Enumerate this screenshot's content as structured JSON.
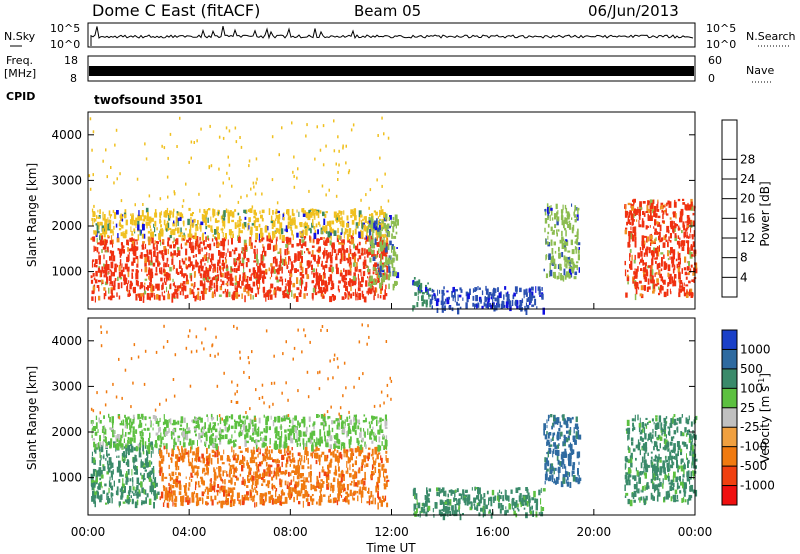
{
  "header": {
    "station": "Dome C East (fitACF)",
    "beam": "Beam 05",
    "date": "06/Jun/2013"
  },
  "noise_panel": {
    "left_label": "N.Sky",
    "right_label": "N.Search",
    "left_ticks": [
      "10^5",
      "10^0"
    ],
    "right_ticks": [
      "10^5",
      "10^0"
    ]
  },
  "freq_panel": {
    "left_label_1": "Freq.",
    "left_label_2": "[MHz]",
    "right_label": "Nave",
    "left_ticks": [
      "18",
      "8"
    ],
    "right_ticks": [
      "60",
      "0"
    ]
  },
  "cpid": {
    "label": "CPID",
    "value": "twofsound 3501"
  },
  "axes": {
    "ylabel": "Slant Range [km]",
    "xlabel": "Time UT",
    "y_ticks": [
      "1000",
      "2000",
      "3000",
      "4000"
    ],
    "x_ticks": [
      "00:00",
      "04:00",
      "08:00",
      "12:00",
      "16:00",
      "20:00",
      "00:00"
    ]
  },
  "power_scale": {
    "label": "Power [dB]",
    "ticks": [
      "4",
      "8",
      "12",
      "16",
      "20",
      "24",
      "28"
    ],
    "colors": [
      "#1010e0",
      "#2a50b0",
      "#3a8a60",
      "#8cbc50",
      "#f0c020",
      "#f09020",
      "#f06010",
      "#f03010",
      "#f01010"
    ]
  },
  "velocity_scale": {
    "label": "Velocity [m s",
    "label_sup": "-1",
    "label_end": "]",
    "ticks": [
      "1000",
      "500",
      "100",
      "25",
      "-25",
      "-100",
      "-500",
      "-1000"
    ],
    "colors": [
      "#1a40c8",
      "#2e6aa0",
      "#3a8a6a",
      "#5cc040",
      "#c0c0c0",
      "#f0a040",
      "#f07a10",
      "#f04010",
      "#f01010"
    ]
  },
  "chart_data": [
    {
      "type": "heatmap",
      "panel": "power",
      "x_range_hours": [
        0,
        24
      ],
      "y_range_km": [
        180,
        4500
      ],
      "colorbar_ticks": [
        4,
        8,
        12,
        16,
        20,
        24,
        28
      ],
      "regions": [
        {
          "t0": 0.1,
          "t1": 11.8,
          "r0": 450,
          "r1": 1800,
          "level": 28
        },
        {
          "t0": 0.1,
          "t1": 11.8,
          "r0": 1800,
          "r1": 2400,
          "level": 16
        },
        {
          "t0": 11.0,
          "t1": 12.2,
          "r0": 700,
          "r1": 2300,
          "level": 12
        },
        {
          "t0": 12.8,
          "t1": 13.5,
          "r0": 250,
          "r1": 900,
          "level": 8
        },
        {
          "t0": 13.5,
          "t1": 18.0,
          "r0": 200,
          "r1": 700,
          "level": 4
        },
        {
          "t0": 18.0,
          "t1": 19.4,
          "r0": 900,
          "r1": 2500,
          "level": 12
        },
        {
          "t0": 21.2,
          "t1": 24.0,
          "r0": 500,
          "r1": 2600,
          "level": 28
        }
      ]
    },
    {
      "type": "heatmap",
      "panel": "velocity",
      "x_range_hours": [
        0,
        24
      ],
      "y_range_km": [
        180,
        4500
      ],
      "colorbar_ticks": [
        1000,
        500,
        100,
        25,
        -25,
        -100,
        -500,
        -1000
      ],
      "regions": [
        {
          "t0": 0.1,
          "t1": 2.8,
          "r0": 450,
          "r1": 1800,
          "level": 100
        },
        {
          "t0": 2.8,
          "t1": 11.8,
          "r0": 450,
          "r1": 1700,
          "level": -500
        },
        {
          "t0": 0.1,
          "t1": 11.8,
          "r0": 1700,
          "r1": 2400,
          "level": 25
        },
        {
          "t0": 12.8,
          "t1": 18.0,
          "r0": 200,
          "r1": 800,
          "level": 100
        },
        {
          "t0": 18.0,
          "t1": 19.4,
          "r0": 900,
          "r1": 2400,
          "level": 500
        },
        {
          "t0": 21.2,
          "t1": 24.0,
          "r0": 500,
          "r1": 2400,
          "level": 100
        }
      ]
    }
  ]
}
